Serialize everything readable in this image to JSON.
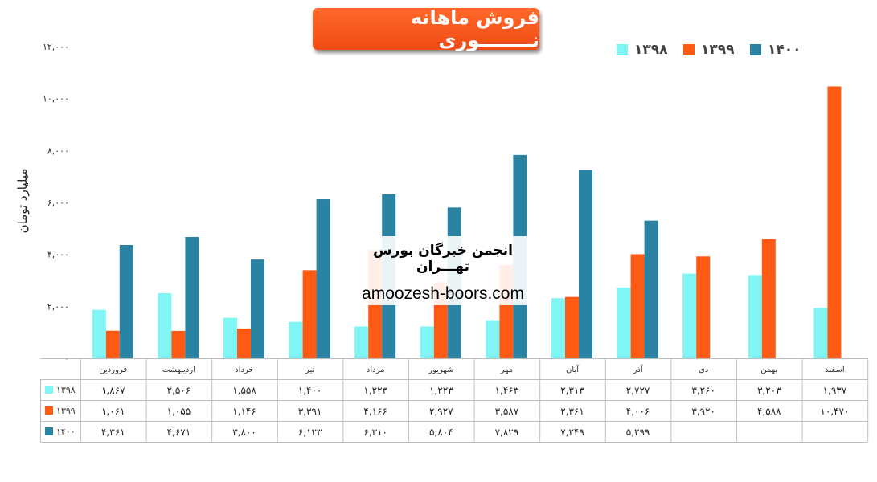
{
  "title": "فروش ماهانه نــــــــوری",
  "watermark": {
    "line1": "انجمن خبرگان بورس تهـــران",
    "line2": "amoozesh-boors.com"
  },
  "chart_data": {
    "type": "bar",
    "ylabel": "میلیارد تومان",
    "ylim": [
      0,
      12000
    ],
    "y_ticks": [
      "۰",
      "۲,۰۰۰",
      "۴,۰۰۰",
      "۶,۰۰۰",
      "۸,۰۰۰",
      "۱۰,۰۰۰",
      "۱۲,۰۰۰"
    ],
    "y_tick_values": [
      0,
      2000,
      4000,
      6000,
      8000,
      10000,
      12000
    ],
    "grid": false,
    "legend_position": "top-right",
    "categories": [
      "فروردین",
      "اردیبهشت",
      "خرداد",
      "تیر",
      "مرداد",
      "شهریور",
      "مهر",
      "آبان",
      "آذر",
      "دی",
      "بهمن",
      "اسفند"
    ],
    "series": [
      {
        "name": "۱۳۹۸",
        "color": "#7ff5f5",
        "values": [
          1867,
          2506,
          1558,
          1400,
          1223,
          1223,
          1463,
          2313,
          2727,
          3260,
          3203,
          1937
        ],
        "labels": [
          "۱,۸۶۷",
          "۲,۵۰۶",
          "۱,۵۵۸",
          "۱,۴۰۰",
          "۱,۲۲۳",
          "۱,۲۲۳",
          "۱,۴۶۳",
          "۲,۳۱۳",
          "۲,۷۲۷",
          "۳,۲۶۰",
          "۳,۲۰۳",
          "۱,۹۳۷"
        ]
      },
      {
        "name": "۱۳۹۹",
        "color": "#ff5a14",
        "values": [
          1061,
          1055,
          1146,
          3391,
          4166,
          2927,
          3587,
          2361,
          4006,
          3920,
          4588,
          10470
        ],
        "labels": [
          "۱,۰۶۱",
          "۱,۰۵۵",
          "۱,۱۴۶",
          "۳,۳۹۱",
          "۴,۱۶۶",
          "۲,۹۲۷",
          "۳,۵۸۷",
          "۲,۳۶۱",
          "۴,۰۰۶",
          "۳,۹۲۰",
          "۴,۵۸۸",
          "۱۰,۴۷۰"
        ]
      },
      {
        "name": "۱۴۰۰",
        "color": "#2b83a3",
        "values": [
          4361,
          4671,
          3800,
          6123,
          6310,
          5804,
          7829,
          7249,
          5299,
          null,
          null,
          null
        ],
        "labels": [
          "۴,۳۶۱",
          "۴,۶۷۱",
          "۳,۸۰۰",
          "۶,۱۲۳",
          "۶,۳۱۰",
          "۵,۸۰۴",
          "۷,۸۲۹",
          "۷,۲۴۹",
          "۵,۲۹۹",
          "",
          "",
          ""
        ]
      }
    ]
  }
}
